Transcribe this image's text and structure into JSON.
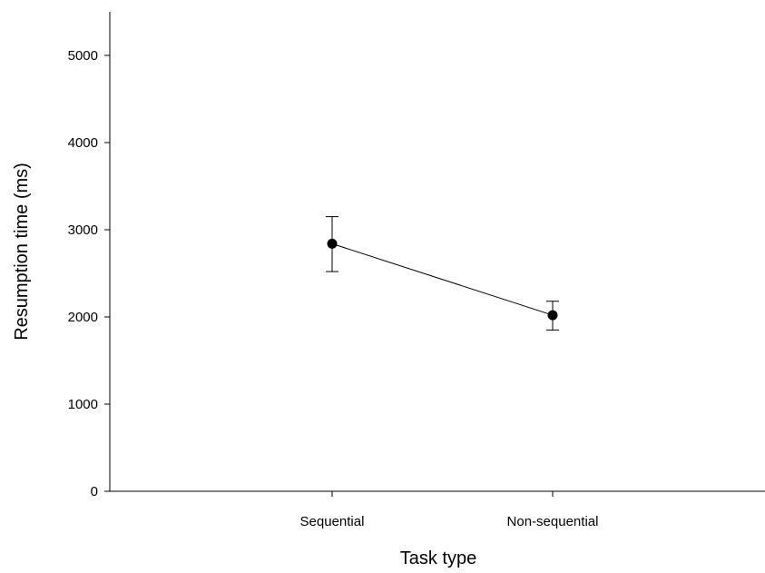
{
  "chart_data": {
    "type": "line",
    "title": "",
    "xlabel": "Task type",
    "ylabel": "Resumption time (ms)",
    "categories": [
      "Sequential",
      "Non-sequential"
    ],
    "ylim": [
      0,
      5500
    ],
    "yticks": [
      0,
      1000,
      2000,
      3000,
      4000,
      5000
    ],
    "ytick_labels": [
      "0",
      "1000",
      "2000",
      "3000",
      "4000",
      "5000"
    ],
    "grid": false,
    "legend": "none",
    "series": [
      {
        "values": [
          2840,
          2020
        ],
        "error_low": [
          2520,
          1850
        ],
        "error_high": [
          3150,
          2180
        ],
        "marker": "filled-circle",
        "color": "#000000"
      }
    ]
  }
}
